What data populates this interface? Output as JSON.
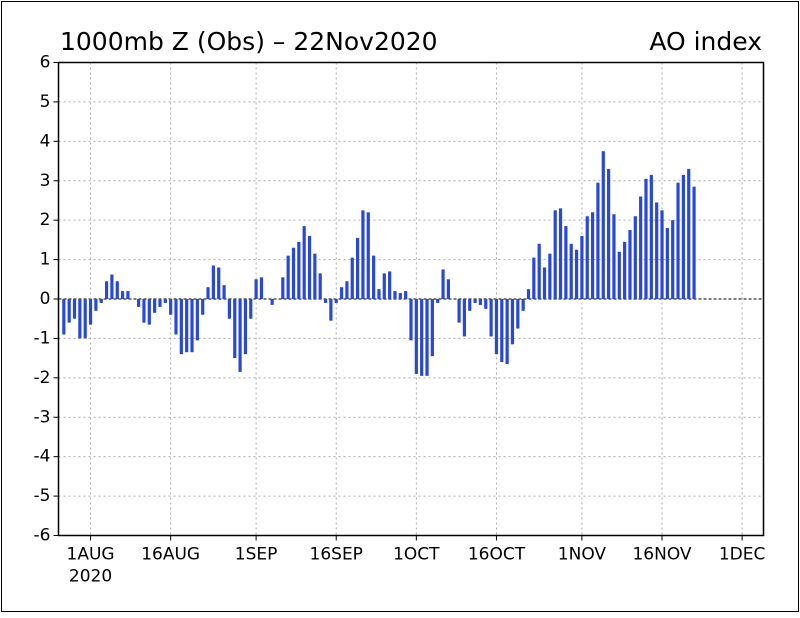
{
  "chart_data": {
    "type": "bar",
    "title": "1000mb Z (Obs) – 22Nov2020",
    "subtitle": "AO index",
    "x_year_label": "2020",
    "color": "#2a48d6",
    "grid": true,
    "xlim": [
      "2020-07-26",
      "2020-12-05"
    ],
    "xticks": [
      {
        "value": "2020-08-01",
        "label": "1AUG"
      },
      {
        "value": "2020-08-16",
        "label": "16AUG"
      },
      {
        "value": "2020-09-01",
        "label": "1SEP"
      },
      {
        "value": "2020-09-16",
        "label": "16SEP"
      },
      {
        "value": "2020-10-01",
        "label": "1OCT"
      },
      {
        "value": "2020-10-16",
        "label": "16OCT"
      },
      {
        "value": "2020-11-01",
        "label": "1NOV"
      },
      {
        "value": "2020-11-16",
        "label": "16NOV"
      },
      {
        "value": "2020-12-01",
        "label": "1DEC"
      }
    ],
    "ylim": [
      -6,
      6
    ],
    "yticks": [
      -6,
      -5,
      -4,
      -3,
      -2,
      -1,
      0,
      1,
      2,
      3,
      4,
      5,
      6
    ],
    "x": [
      "2020-07-27",
      "2020-07-28",
      "2020-07-29",
      "2020-07-30",
      "2020-07-31",
      "2020-08-01",
      "2020-08-02",
      "2020-08-03",
      "2020-08-04",
      "2020-08-05",
      "2020-08-06",
      "2020-08-07",
      "2020-08-08",
      "2020-08-09",
      "2020-08-10",
      "2020-08-11",
      "2020-08-12",
      "2020-08-13",
      "2020-08-14",
      "2020-08-15",
      "2020-08-16",
      "2020-08-17",
      "2020-08-18",
      "2020-08-19",
      "2020-08-20",
      "2020-08-21",
      "2020-08-22",
      "2020-08-23",
      "2020-08-24",
      "2020-08-25",
      "2020-08-26",
      "2020-08-27",
      "2020-08-28",
      "2020-08-29",
      "2020-08-30",
      "2020-08-31",
      "2020-09-01",
      "2020-09-02",
      "2020-09-03",
      "2020-09-04",
      "2020-09-05",
      "2020-09-06",
      "2020-09-07",
      "2020-09-08",
      "2020-09-09",
      "2020-09-10",
      "2020-09-11",
      "2020-09-12",
      "2020-09-13",
      "2020-09-14",
      "2020-09-15",
      "2020-09-16",
      "2020-09-17",
      "2020-09-18",
      "2020-09-19",
      "2020-09-20",
      "2020-09-21",
      "2020-09-22",
      "2020-09-23",
      "2020-09-24",
      "2020-09-25",
      "2020-09-26",
      "2020-09-27",
      "2020-09-28",
      "2020-09-29",
      "2020-09-30",
      "2020-10-01",
      "2020-10-02",
      "2020-10-03",
      "2020-10-04",
      "2020-10-05",
      "2020-10-06",
      "2020-10-07",
      "2020-10-08",
      "2020-10-09",
      "2020-10-10",
      "2020-10-11",
      "2020-10-12",
      "2020-10-13",
      "2020-10-14",
      "2020-10-15",
      "2020-10-16",
      "2020-10-17",
      "2020-10-18",
      "2020-10-19",
      "2020-10-20",
      "2020-10-21",
      "2020-10-22",
      "2020-10-23",
      "2020-10-24",
      "2020-10-25",
      "2020-10-26",
      "2020-10-27",
      "2020-10-28",
      "2020-10-29",
      "2020-10-30",
      "2020-10-31",
      "2020-11-01",
      "2020-11-02",
      "2020-11-03",
      "2020-11-04",
      "2020-11-05",
      "2020-11-06",
      "2020-11-07",
      "2020-11-08",
      "2020-11-09",
      "2020-11-10",
      "2020-11-11",
      "2020-11-12",
      "2020-11-13",
      "2020-11-14",
      "2020-11-15",
      "2020-11-16",
      "2020-11-17",
      "2020-11-18",
      "2020-11-19",
      "2020-11-20",
      "2020-11-21",
      "2020-11-22"
    ],
    "values": [
      -0.9,
      -0.6,
      -0.5,
      -1.0,
      -1.0,
      -0.65,
      -0.3,
      -0.1,
      0.45,
      0.62,
      0.45,
      0.2,
      0.2,
      0,
      -0.2,
      -0.6,
      -0.65,
      -0.35,
      -0.2,
      -0.1,
      -0.4,
      -0.9,
      -1.4,
      -1.35,
      -1.35,
      -1.05,
      -0.4,
      0.3,
      0.85,
      0.8,
      0.35,
      -0.5,
      -1.5,
      -1.85,
      -1.4,
      -0.5,
      0.5,
      0.55,
      0,
      -0.15,
      0,
      0.55,
      1.1,
      1.3,
      1.45,
      1.85,
      1.6,
      1.15,
      0.65,
      -0.1,
      -0.55,
      -0.1,
      0.3,
      0.45,
      1.05,
      1.55,
      2.25,
      2.2,
      1.1,
      0.25,
      0.65,
      0.7,
      0.2,
      0.15,
      0.2,
      -1.05,
      -1.9,
      -1.95,
      -1.95,
      -1.45,
      -0.1,
      0.75,
      0.5,
      0,
      -0.6,
      -0.95,
      -0.3,
      -0.1,
      -0.15,
      -0.25,
      -0.95,
      -1.4,
      -1.6,
      -1.65,
      -1.15,
      -0.75,
      -0.3,
      0.25,
      1.05,
      1.4,
      0.8,
      1.15,
      2.25,
      2.3,
      1.85,
      1.4,
      1.25,
      1.6,
      2.1,
      2.2,
      2.95,
      3.75,
      3.3,
      2.15,
      1.2,
      1.45,
      1.75,
      2.1,
      2.6,
      3.05,
      3.15,
      2.45,
      2.25,
      1.8,
      2.0,
      2.95,
      3.15,
      3.3,
      2.85
    ]
  }
}
